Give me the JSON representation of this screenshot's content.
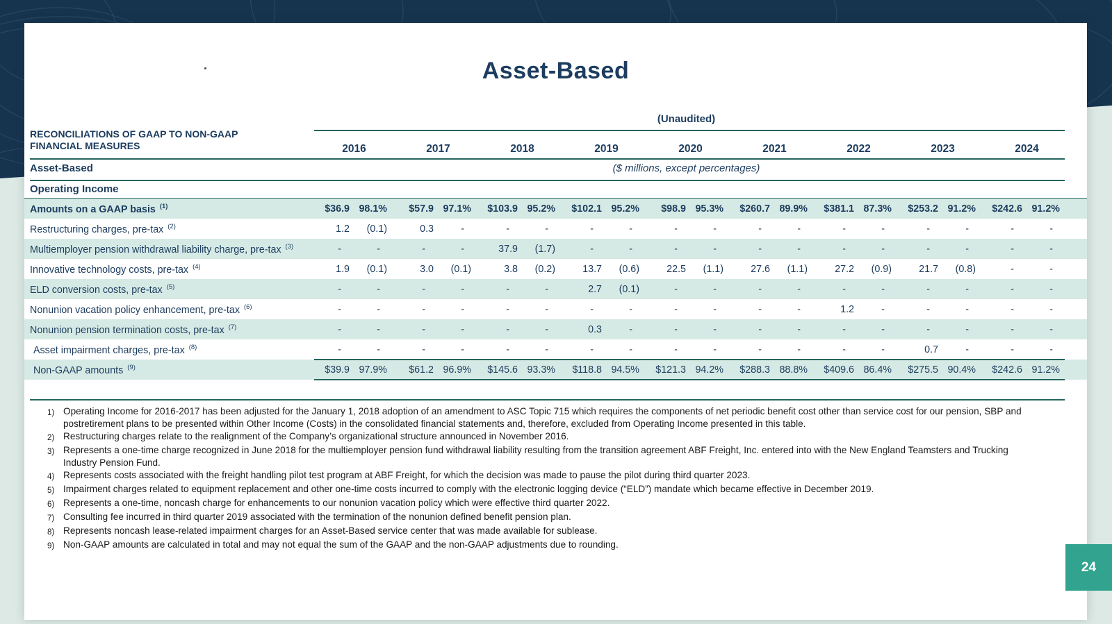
{
  "colors": {
    "background_navy": "#17344f",
    "background_light": "#dde9e4",
    "stripe": "#d6eae5",
    "rule_teal": "#23655d",
    "text_navy": "#1c3c5e",
    "badge_teal": "#31a38e"
  },
  "slide": {
    "title": "Asset-Based",
    "unaudited": "(Unaudited)",
    "header_label_line1": "RECONCILIATIONS OF GAAP TO NON-GAAP",
    "header_label_line2": "FINANCIAL MEASURES",
    "section_label": "Asset-Based",
    "units_note": "($ millions, except percentages)",
    "group_label": "Operating Income",
    "page_number": "24"
  },
  "table": {
    "years": [
      "2016",
      "2017",
      "2018",
      "2019",
      "2020",
      "2021",
      "2022",
      "2023",
      "2024"
    ],
    "rows": [
      {
        "label": "Amounts on a GAAP basis",
        "note": "1",
        "bold": true,
        "stripe": true,
        "gaap_rule": true,
        "indent": false,
        "values": [
          "$36.9",
          "98.1%",
          "$57.9",
          "97.1%",
          "$103.9",
          "95.2%",
          "$102.1",
          "95.2%",
          "$98.9",
          "95.3%",
          "$260.7",
          "89.9%",
          "$381.1",
          "87.3%",
          "$253.2",
          "91.2%",
          "$242.6",
          "91.2%"
        ]
      },
      {
        "label": "Restructuring charges, pre-tax",
        "note": "2",
        "bold": false,
        "stripe": false,
        "gaap_rule": false,
        "indent": false,
        "values": [
          "1.2",
          "(0.1)",
          "0.3",
          "-",
          "-",
          "-",
          "-",
          "-",
          "-",
          "-",
          "-",
          "-",
          "-",
          "-",
          "-",
          "-",
          "-",
          "-"
        ]
      },
      {
        "label": "Multiemployer pension withdrawal liability charge, pre-tax",
        "note": "3",
        "bold": false,
        "stripe": true,
        "gaap_rule": false,
        "indent": false,
        "values": [
          "-",
          "-",
          "-",
          "-",
          "37.9",
          "(1.7)",
          "-",
          "-",
          "-",
          "-",
          "-",
          "-",
          "-",
          "-",
          "-",
          "-",
          "-",
          "-"
        ]
      },
      {
        "label": "Innovative technology costs, pre-tax",
        "note": "4",
        "bold": false,
        "stripe": false,
        "gaap_rule": false,
        "indent": false,
        "values": [
          "1.9",
          "(0.1)",
          "3.0",
          "(0.1)",
          "3.8",
          "(0.2)",
          "13.7",
          "(0.6)",
          "22.5",
          "(1.1)",
          "27.6",
          "(1.1)",
          "27.2",
          "(0.9)",
          "21.7",
          "(0.8)",
          "-",
          "-"
        ]
      },
      {
        "label": "ELD conversion costs, pre-tax",
        "note": "5",
        "bold": false,
        "stripe": true,
        "gaap_rule": false,
        "indent": false,
        "values": [
          "-",
          "-",
          "-",
          "-",
          "-",
          "-",
          "2.7",
          "(0.1)",
          "-",
          "-",
          "-",
          "-",
          "-",
          "-",
          "-",
          "-",
          "-",
          "-"
        ]
      },
      {
        "label": "Nonunion vacation policy enhancement, pre-tax",
        "note": "6",
        "bold": false,
        "stripe": false,
        "gaap_rule": false,
        "indent": false,
        "values": [
          "-",
          "-",
          "-",
          "-",
          "-",
          "-",
          "-",
          "-",
          "-",
          "-",
          "-",
          "-",
          "1.2",
          "-",
          "-",
          "-",
          "-",
          "-"
        ]
      },
      {
        "label": "Nonunion pension termination costs, pre-tax",
        "note": "7",
        "bold": false,
        "stripe": true,
        "gaap_rule": false,
        "indent": false,
        "values": [
          "-",
          "-",
          "-",
          "-",
          "-",
          "-",
          "0.3",
          "-",
          "-",
          "-",
          "-",
          "-",
          "-",
          "-",
          "-",
          "-",
          "-",
          "-"
        ]
      },
      {
        "label": "Asset impairment charges, pre-tax",
        "note": "8",
        "bold": false,
        "stripe": false,
        "gaap_rule": false,
        "indent": true,
        "values": [
          "-",
          "-",
          "-",
          "-",
          "-",
          "-",
          "-",
          "-",
          "-",
          "-",
          "-",
          "-",
          "-",
          "-",
          "0.7",
          "-",
          "-",
          "-"
        ]
      },
      {
        "label": "Non-GAAP amounts",
        "note": "9",
        "bold": false,
        "stripe": true,
        "gaap_rule": false,
        "indent": true,
        "values": [
          "$39.9",
          "97.9%",
          "$61.2",
          "96.9%",
          "$145.6",
          "93.3%",
          "$118.8",
          "94.5%",
          "$121.3",
          "94.2%",
          "$288.3",
          "88.8%",
          "$409.6",
          "86.4%",
          "$275.5",
          "90.4%",
          "$242.6",
          "91.2%"
        ]
      }
    ]
  },
  "footnotes": [
    {
      "marker": "1)",
      "text": "Operating Income for 2016-2017 has been adjusted for the January 1, 2018 adoption of an amendment to ASC Topic 715 which requires the components of net periodic benefit cost other than service cost for our pension, SBP and postretirement plans to be presented within Other Income (Costs) in the consolidated financial statements and, therefore, excluded from Operating Income presented in this table."
    },
    {
      "marker": "2)",
      "text": "Restructuring charges relate to the realignment of the Company’s organizational structure announced in November 2016."
    },
    {
      "marker": "3)",
      "text": "Represents a one-time charge recognized in June 2018 for the multiemployer pension fund withdrawal liability resulting from the transition agreement ABF Freight, Inc. entered into with the New England Teamsters and Trucking Industry Pension Fund."
    },
    {
      "marker": "4)",
      "text": "Represents costs associated with the freight handling pilot test program at ABF Freight, for which the decision was made to pause the pilot during third quarter 2023."
    },
    {
      "marker": "5)",
      "text": "Impairment charges related to equipment replacement and other one-time costs incurred to comply with the electronic logging device (“ELD”) mandate which became effective in December 2019."
    },
    {
      "marker": "6)",
      "text": "Represents a one-time, noncash charge for enhancements to our nonunion vacation policy which were effective third quarter 2022."
    },
    {
      "marker": "7)",
      "text": "Consulting fee incurred in third quarter 2019 associated with the termination of the nonunion defined benefit pension plan."
    },
    {
      "marker": "8)",
      "text": "Represents noncash lease-related impairment charges for an Asset-Based service center that was made available for sublease."
    },
    {
      "marker": "9)",
      "text": "Non-GAAP amounts are calculated in total and may not equal the sum of the GAAP and the non-GAAP adjustments due to rounding."
    }
  ]
}
